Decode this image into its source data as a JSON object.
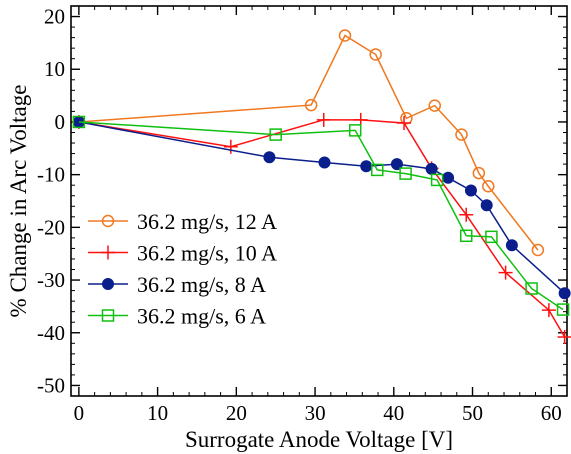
{
  "chart_data": {
    "type": "line",
    "xlabel": "Surrogate Anode Voltage [V]",
    "ylabel": "% Change in Arc Voltage",
    "xlim": [
      -1,
      62
    ],
    "ylim": [
      -52,
      22
    ],
    "xticks": [
      0,
      10,
      20,
      30,
      40,
      50,
      60
    ],
    "yticks": [
      20,
      10,
      0,
      -10,
      -20,
      -30,
      -40,
      -50
    ],
    "xtick_labels": [
      "0",
      "10",
      "20",
      "30",
      "40",
      "50",
      "60"
    ],
    "ytick_labels": [
      "20",
      "10",
      "0",
      "-10",
      "-20",
      "-30",
      "-40",
      "-50"
    ],
    "grid": false,
    "legend_position": "lower-left",
    "series": [
      {
        "name": "36.2 mg/s, 12 A",
        "color": "#f07820",
        "marker": "open-circle",
        "x": [
          0,
          29.5,
          33.8,
          37.7,
          41.6,
          45.2,
          48.6,
          50.8,
          52.0,
          58.3
        ],
        "y": [
          0,
          3.2,
          16.4,
          12.8,
          0.7,
          3.1,
          -2.4,
          -9.7,
          -12.2,
          -24.3
        ]
      },
      {
        "name": "36.2 mg/s, 10 A",
        "color": "#ff1010",
        "marker": "plus",
        "x": [
          0,
          19.3,
          31.1,
          35.8,
          41.3,
          44.8,
          49.2,
          54.2,
          59.7,
          61.7
        ],
        "y": [
          0,
          -4.7,
          0.4,
          0.4,
          -0.2,
          -8.8,
          -17.6,
          -28.6,
          -35.7,
          -40.8
        ]
      },
      {
        "name": "36.2 mg/s, 8 A",
        "color": "#0a1e8c",
        "marker": "filled-circle",
        "x": [
          0,
          24.2,
          31.2,
          36.5,
          40.4,
          44.8,
          46.9,
          49.8,
          51.8,
          55.0,
          61.7
        ],
        "y": [
          0,
          -6.7,
          -7.7,
          -8.4,
          -8.0,
          -8.9,
          -10.6,
          -13.0,
          -15.8,
          -23.4,
          -32.5
        ]
      },
      {
        "name": "36.2 mg/s, 6 A",
        "color": "#10c010",
        "marker": "open-square",
        "x": [
          0,
          25.0,
          35.1,
          37.9,
          41.5,
          45.5,
          49.2,
          52.4,
          57.5,
          61.5
        ],
        "y": [
          0,
          -2.4,
          -1.6,
          -9.1,
          -9.8,
          -11.0,
          -21.6,
          -21.8,
          -31.6,
          -35.6
        ]
      }
    ]
  }
}
